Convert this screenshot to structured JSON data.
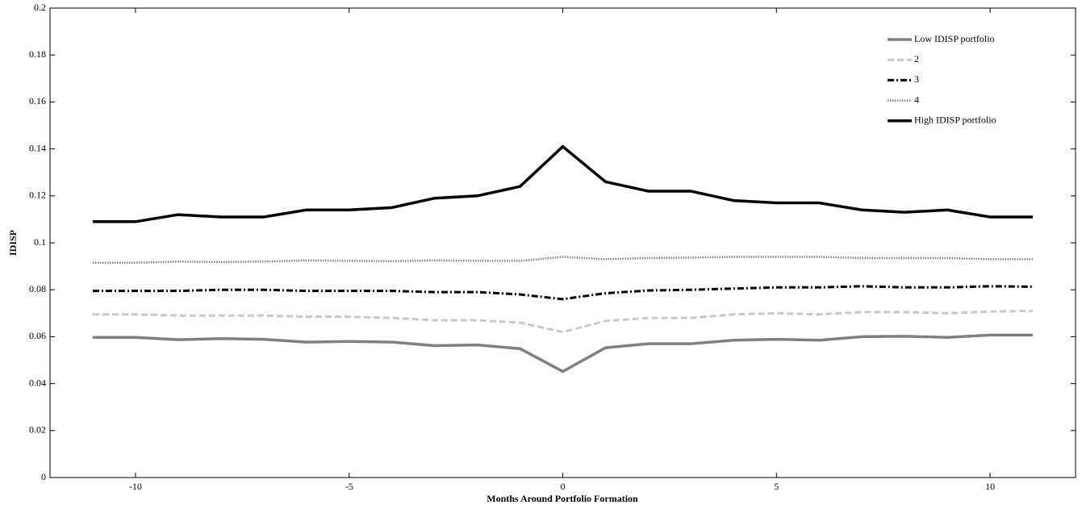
{
  "chart_data": {
    "type": "line",
    "x_label": "Months Around Portfolio Formation",
    "y_label": "IDISP",
    "x": [
      -11,
      -10,
      -9,
      -8,
      -7,
      -6,
      -5,
      -4,
      -3,
      -2,
      -1,
      0,
      1,
      2,
      3,
      4,
      5,
      6,
      7,
      8,
      9,
      10,
      11
    ],
    "series": [
      {
        "name": "Low IDISP portfolio",
        "color": "#808080",
        "style": "solid",
        "values": [
          0.0597,
          0.0597,
          0.0587,
          0.0592,
          0.0589,
          0.0577,
          0.058,
          0.0577,
          0.0562,
          0.0565,
          0.0549,
          0.0452,
          0.0553,
          0.057,
          0.057,
          0.0585,
          0.0589,
          0.0585,
          0.06,
          0.0602,
          0.0597,
          0.0607,
          0.0607
        ]
      },
      {
        "name": "2",
        "color": "#c8c8c8",
        "style": "dashed",
        "values": [
          0.0695,
          0.0695,
          0.069,
          0.069,
          0.069,
          0.0685,
          0.0685,
          0.068,
          0.067,
          0.067,
          0.066,
          0.062,
          0.0667,
          0.068,
          0.068,
          0.0695,
          0.07,
          0.0695,
          0.0705,
          0.0705,
          0.07,
          0.0707,
          0.071
        ]
      },
      {
        "name": "3",
        "color": "#000000",
        "style": "dashdot",
        "values": [
          0.0795,
          0.0795,
          0.0795,
          0.08,
          0.08,
          0.0795,
          0.0795,
          0.0795,
          0.079,
          0.079,
          0.078,
          0.076,
          0.0785,
          0.0797,
          0.08,
          0.0805,
          0.081,
          0.081,
          0.0815,
          0.081,
          0.081,
          0.0815,
          0.0813
        ]
      },
      {
        "name": "4",
        "color": "#808080",
        "style": "dotted",
        "values": [
          0.0915,
          0.0915,
          0.092,
          0.0918,
          0.092,
          0.0925,
          0.0923,
          0.0922,
          0.0925,
          0.0923,
          0.0923,
          0.094,
          0.093,
          0.0935,
          0.0937,
          0.094,
          0.094,
          0.094,
          0.0935,
          0.0935,
          0.0935,
          0.093,
          0.093
        ]
      },
      {
        "name": "High IDISP portfolio",
        "color": "#000000",
        "style": "solid",
        "values": [
          0.109,
          0.109,
          0.112,
          0.111,
          0.111,
          0.114,
          0.114,
          0.115,
          0.119,
          0.12,
          0.124,
          0.141,
          0.126,
          0.122,
          0.122,
          0.118,
          0.117,
          0.117,
          0.114,
          0.113,
          0.114,
          0.111,
          0.111
        ]
      }
    ],
    "xlim": [
      -12,
      12
    ],
    "xticks": [
      -10,
      -5,
      0,
      5,
      10
    ],
    "ylim": [
      0,
      0.2
    ],
    "yticks": [
      0,
      0.02,
      0.04,
      0.06,
      0.08,
      0.1,
      0.12,
      0.14,
      0.16,
      0.18,
      0.2
    ],
    "grid": false,
    "legend": "upper right"
  }
}
